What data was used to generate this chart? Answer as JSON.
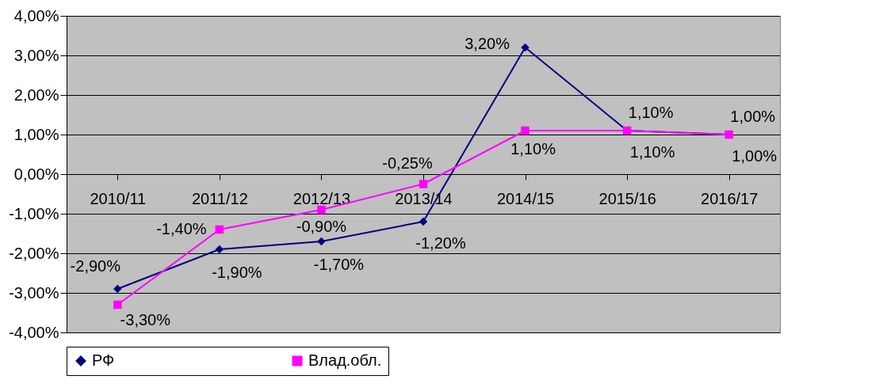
{
  "chart_data": {
    "type": "line",
    "categories": [
      "2010/11",
      "2011/12",
      "2012/13",
      "2013/14",
      "2014/15",
      "2015/16",
      "2016/17"
    ],
    "series": [
      {
        "name": "РФ",
        "color": "#000080",
        "marker": "diamond",
        "values": [
          -2.9,
          -1.9,
          -1.7,
          -1.2,
          3.2,
          1.1,
          1.0
        ],
        "value_labels": [
          "-2,90%",
          "-1,90%",
          "-1,70%",
          "-1,20%",
          "3,20%",
          "1,10%",
          "1,00%"
        ]
      },
      {
        "name": "Влад.обл.",
        "color": "#ff00ff",
        "marker": "square",
        "values": [
          -3.3,
          -1.4,
          -0.9,
          -0.25,
          1.1,
          1.1,
          1.0
        ],
        "value_labels": [
          "-3,30%",
          "-1,40%",
          "-0,90%",
          "-0,25%",
          "1,10%",
          "1,10%",
          "1,00%"
        ]
      }
    ],
    "ylim": [
      -4,
      4
    ],
    "yticks": [
      {
        "value": -4,
        "label": "-4,00%"
      },
      {
        "value": -3,
        "label": "-3,00%"
      },
      {
        "value": -2,
        "label": "-2,00%"
      },
      {
        "value": -1,
        "label": "-1,00%"
      },
      {
        "value": 0,
        "label": "0,00%"
      },
      {
        "value": 1,
        "label": "1,00%"
      },
      {
        "value": 2,
        "label": "2,00%"
      },
      {
        "value": 3,
        "label": "3,00%"
      },
      {
        "value": 4,
        "label": "4,00%"
      }
    ],
    "grid": "y",
    "legend": "bottom",
    "line_style": "solid"
  }
}
